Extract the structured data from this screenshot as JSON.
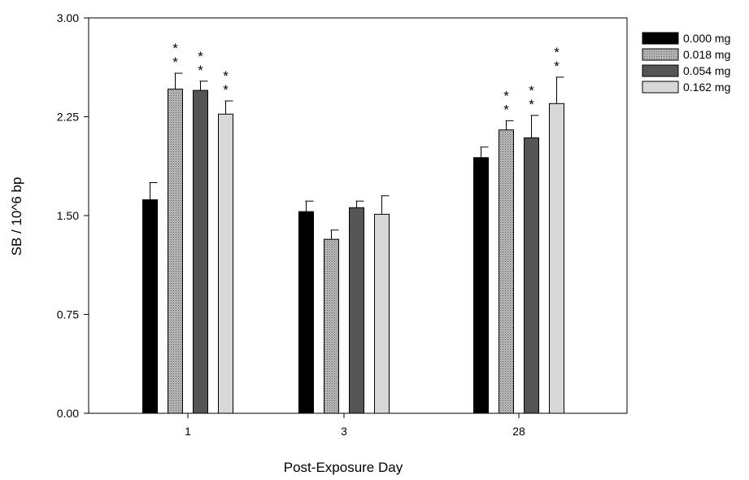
{
  "chart_data": {
    "type": "bar",
    "title": "",
    "xlabel": "Post-Exposure Day",
    "ylabel": "SB / 10^6 bp",
    "ylim": [
      0,
      3
    ],
    "yticks": [
      "0.00",
      "0.75",
      "1.50",
      "2.25",
      "3.00"
    ],
    "categories": [
      "1",
      "3",
      "28"
    ],
    "legend_position": "right",
    "grid": false,
    "series": [
      {
        "name": "0.000 mg",
        "fill": "solid",
        "color": "#000000",
        "values": [
          1.62,
          1.53,
          1.94
        ],
        "errors": [
          0.13,
          0.08,
          0.08
        ],
        "significance": [
          "",
          "",
          ""
        ]
      },
      {
        "name": "0.018 mg",
        "fill": "dotted",
        "color": "#b8b8b8",
        "values": [
          2.46,
          1.32,
          2.15
        ],
        "errors": [
          0.12,
          0.07,
          0.07
        ],
        "significance": [
          "**",
          "",
          "**"
        ]
      },
      {
        "name": "0.054 mg",
        "fill": "solid",
        "color": "#555555",
        "values": [
          2.45,
          1.56,
          2.09
        ],
        "errors": [
          0.07,
          0.05,
          0.17
        ],
        "significance": [
          "**",
          "",
          "**"
        ]
      },
      {
        "name": "0.162 mg",
        "fill": "solid",
        "color": "#d8d8d8",
        "values": [
          2.27,
          1.51,
          2.35
        ],
        "errors": [
          0.1,
          0.14,
          0.2
        ],
        "significance": [
          "**",
          "",
          "**"
        ]
      }
    ]
  }
}
